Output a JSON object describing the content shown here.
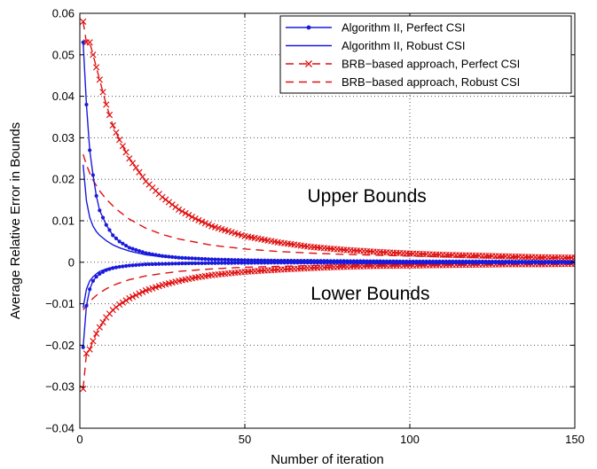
{
  "chart_data": {
    "type": "line",
    "xlabel": "Number of iteration",
    "ylabel": "Average Relative Error in Bounds",
    "xlim": [
      0,
      150
    ],
    "ylim": [
      -0.04,
      0.06
    ],
    "xticks": [
      0,
      50,
      100,
      150
    ],
    "yticks": [
      -0.04,
      -0.03,
      -0.02,
      -0.01,
      0,
      0.01,
      0.02,
      0.03,
      0.04,
      0.05,
      0.06
    ],
    "grid": true,
    "grid_style": "dotted",
    "legend": "top-right",
    "annotations": [
      {
        "text": "Upper Bounds",
        "x": 87,
        "y": 0.0145
      },
      {
        "text": "Lower Bounds",
        "x": 88,
        "y": -0.009
      }
    ],
    "series": [
      {
        "name": "Algorithm II, Perfect CSI",
        "color": "#1a1adb",
        "style": "solid-dot",
        "upper": {
          "x": [
            1,
            2,
            3,
            4,
            5,
            6,
            8,
            10,
            12,
            15,
            20,
            25,
            30,
            40,
            50,
            60,
            80,
            100,
            120,
            150
          ],
          "y": [
            0.053,
            0.038,
            0.027,
            0.021,
            0.016,
            0.0125,
            0.009,
            0.0065,
            0.005,
            0.0035,
            0.0022,
            0.0015,
            0.0011,
            0.0007,
            0.0005,
            0.0004,
            0.0003,
            0.0002,
            0.0002,
            0.0001
          ]
        },
        "lower": {
          "x": [
            1,
            2,
            3,
            4,
            5,
            6,
            8,
            10,
            12,
            15,
            20,
            25,
            30,
            40,
            50,
            60,
            80,
            100,
            120,
            150
          ],
          "y": [
            -0.0205,
            -0.0105,
            -0.0065,
            -0.0045,
            -0.0035,
            -0.0028,
            -0.0019,
            -0.0014,
            -0.0011,
            -0.0008,
            -0.0005,
            -0.0004,
            -0.0003,
            -0.0002,
            -0.00015,
            -0.0001,
            -0.0001,
            -0.0001,
            -0.0001,
            -0.0001
          ]
        }
      },
      {
        "name": "Algorithm II, Robust CSI",
        "color": "#1a1adb",
        "style": "solid",
        "upper": {
          "x": [
            1,
            2,
            3,
            4,
            5,
            6,
            8,
            10,
            12,
            15,
            20,
            25,
            30,
            40,
            50,
            60,
            80,
            100,
            120,
            150
          ],
          "y": [
            0.0235,
            0.0148,
            0.0108,
            0.0087,
            0.0074,
            0.0065,
            0.0052,
            0.0042,
            0.0035,
            0.0027,
            0.0018,
            0.0013,
            0.001,
            0.0007,
            0.0005,
            0.0004,
            0.0003,
            0.0002,
            0.0002,
            0.0001
          ]
        },
        "lower": {
          "x": [
            1,
            2,
            3,
            4,
            5,
            6,
            8,
            10,
            12,
            15,
            20,
            25,
            30,
            40,
            50,
            60,
            80,
            100,
            120,
            150
          ],
          "y": [
            -0.011,
            -0.0065,
            -0.0045,
            -0.0035,
            -0.0028,
            -0.0022,
            -0.0016,
            -0.0012,
            -0.001,
            -0.0007,
            -0.0005,
            -0.0004,
            -0.0003,
            -0.0002,
            -0.00015,
            -0.0001,
            -0.0001,
            -0.0001,
            -0.0001,
            -0.0001
          ]
        }
      },
      {
        "name": "BRB−based approach, Perfect CSI",
        "color": "#e01010",
        "style": "dashed-x",
        "upper": {
          "x": [
            1,
            2,
            3,
            4,
            5,
            6,
            7,
            8,
            10,
            12,
            15,
            20,
            25,
            30,
            35,
            40,
            50,
            60,
            70,
            80,
            90,
            100,
            110,
            120,
            130,
            140,
            150
          ],
          "y": [
            0.058,
            0.053,
            0.053,
            0.05,
            0.047,
            0.044,
            0.041,
            0.038,
            0.033,
            0.0295,
            0.025,
            0.0195,
            0.0157,
            0.0127,
            0.0105,
            0.0087,
            0.0063,
            0.0048,
            0.0037,
            0.003,
            0.0025,
            0.0021,
            0.0018,
            0.0016,
            0.0014,
            0.0012,
            0.0011
          ]
        },
        "lower": {
          "x": [
            1,
            2,
            3,
            4,
            5,
            6,
            7,
            8,
            10,
            12,
            15,
            20,
            25,
            30,
            35,
            40,
            50,
            60,
            70,
            80,
            90,
            100,
            110,
            120,
            130,
            140,
            150
          ],
          "y": [
            -0.0305,
            -0.022,
            -0.021,
            -0.019,
            -0.0172,
            -0.0157,
            -0.0145,
            -0.0133,
            -0.0115,
            -0.0102,
            -0.0087,
            -0.0068,
            -0.0055,
            -0.0045,
            -0.0037,
            -0.0031,
            -0.0023,
            -0.0018,
            -0.0014,
            -0.0011,
            -0.0009,
            -0.0008,
            -0.0007,
            -0.0006,
            -0.0005,
            -0.0005,
            -0.0004
          ]
        }
      },
      {
        "name": "BRB−based approach, Robust CSI",
        "color": "#e01010",
        "style": "dashed",
        "upper": {
          "x": [
            1,
            2,
            3,
            4,
            5,
            6,
            8,
            10,
            12,
            15,
            20,
            25,
            30,
            40,
            50,
            60,
            70,
            80,
            100,
            120,
            150
          ],
          "y": [
            0.026,
            0.0235,
            0.0215,
            0.0198,
            0.0185,
            0.0172,
            0.0152,
            0.0136,
            0.0122,
            0.0104,
            0.0082,
            0.0067,
            0.0056,
            0.0041,
            0.0032,
            0.0026,
            0.0022,
            0.0019,
            0.0015,
            0.0012,
            0.0009
          ]
        },
        "lower": {
          "x": [
            1,
            2,
            3,
            4,
            5,
            6,
            8,
            10,
            12,
            15,
            20,
            25,
            30,
            40,
            50,
            60,
            70,
            80,
            100,
            120,
            150
          ],
          "y": [
            -0.0115,
            -0.0105,
            -0.0095,
            -0.0087,
            -0.008,
            -0.0074,
            -0.0064,
            -0.0056,
            -0.005,
            -0.0042,
            -0.0033,
            -0.0027,
            -0.0022,
            -0.0016,
            -0.0012,
            -0.001,
            -0.0008,
            -0.0007,
            -0.0006,
            -0.0005,
            -0.0004
          ]
        }
      }
    ]
  }
}
